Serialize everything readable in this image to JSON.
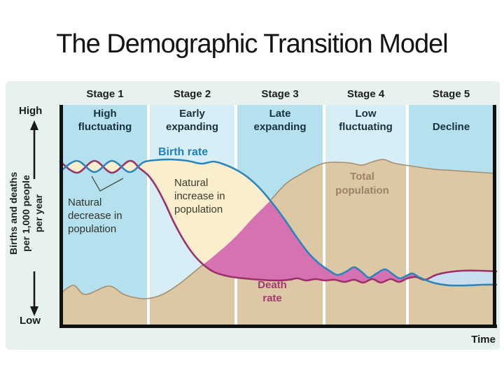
{
  "title": "The Demographic Transition Model",
  "stages": [
    {
      "name": "Stage 1",
      "label": "High\nfluctuating"
    },
    {
      "name": "Stage 2",
      "label": "Early\nexpanding"
    },
    {
      "name": "Stage 3",
      "label": "Late\nexpanding"
    },
    {
      "name": "Stage 4",
      "label": "Low\nfluctuating"
    },
    {
      "name": "Stage 5",
      "label": "Decline"
    }
  ],
  "axis": {
    "high": "High",
    "low": "Low",
    "y_label": "Births and deaths\nper 1,000 people\nper year",
    "x_label": "Time"
  },
  "annotations": {
    "birth_rate": "Birth rate",
    "death_rate": "Death\nrate",
    "total_population": "Total\npopulation",
    "natural_increase": "Natural\nincrease in\npopulation",
    "natural_decrease": "Natural\ndecrease in\npopulation"
  },
  "colors": {
    "panel_background": "#e7f2ee",
    "column_dark_blue": "#b5e0ee",
    "column_light_blue": "#d8eef6",
    "birth_rate_line": "#2b85bd",
    "death_rate_line": "#9c3068",
    "natural_increase_fill": "#fbeecd",
    "increase_over_population_fill": "#d671b2",
    "natural_decrease_fill": "#c9def1",
    "total_population_fill": "#dcc8a5",
    "total_population_edge": "#a38f70"
  },
  "chart_data": {
    "type": "area",
    "categories": [
      "Stage 1",
      "Stage 2",
      "Stage 3",
      "Stage 4",
      "Stage 5"
    ],
    "series": [
      {
        "name": "Birth rate",
        "color": "#2b85bd",
        "shape": "high fluctuating in stage 1, high plateau in stage 2, steep decline in stage 3, low with small waves in stage 4, lowest in stage 5 (below death rate)"
      },
      {
        "name": "Death rate",
        "color": "#9c3068",
        "shape": "high fluctuating in stage 1, steep decline in stage 2, low and flat from stage 3 onward, slightly above birth rate in stage 5"
      },
      {
        "name": "Total population",
        "color": "#dcc8a5",
        "shape": "low and bumpy in stage 1, rises through stages 2-3, peaks in stage 4, slowly declines in stage 5"
      }
    ],
    "ylabel": "Births and deaths per 1,000 people per year",
    "xlabel": "Time",
    "y_range_labels": [
      "Low",
      "High"
    ],
    "grid": false,
    "legend_position": "inline-annotations"
  }
}
